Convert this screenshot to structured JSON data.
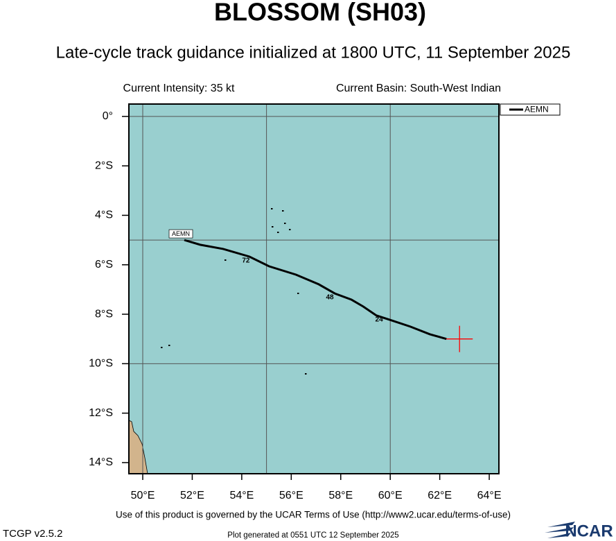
{
  "chart_data": {
    "type": "line",
    "title": "BLOSSOM (SH03)",
    "subtitle": "Late-cycle track guidance initialized at 1800 UTC, 11 September 2025",
    "current_intensity": "Current Intensity: 35 kt",
    "current_basin": "Current Basin: South-West Indian",
    "xlim": [
      49.44,
      64.39
    ],
    "ylim": [
      -14.45,
      0.5
    ],
    "xticks": [
      {
        "value": 50,
        "label": "50°E"
      },
      {
        "value": 52,
        "label": "52°E"
      },
      {
        "value": 54,
        "label": "54°E"
      },
      {
        "value": 56,
        "label": "56°E"
      },
      {
        "value": 58,
        "label": "58°E"
      },
      {
        "value": 60,
        "label": "60°E"
      },
      {
        "value": 62,
        "label": "62°E"
      },
      {
        "value": 64,
        "label": "64°E"
      }
    ],
    "yticks": [
      {
        "value": 0,
        "label": "0°"
      },
      {
        "value": -2,
        "label": "2°S"
      },
      {
        "value": -4,
        "label": "4°S"
      },
      {
        "value": -6,
        "label": "6°S"
      },
      {
        "value": -8,
        "label": "8°S"
      },
      {
        "value": -10,
        "label": "10°S"
      },
      {
        "value": -12,
        "label": "12°S"
      },
      {
        "value": -14,
        "label": "14°S"
      }
    ],
    "grid_x": [
      50,
      55,
      60
    ],
    "grid_y": [
      0,
      -5,
      -10
    ],
    "background": "#99cfcf",
    "land_color": "#d2b48c",
    "series": [
      {
        "name": "AEMN",
        "color": "#000000",
        "x": [
          51.68,
          52.32,
          53.25,
          54.31,
          55.1,
          56.19,
          57.11,
          57.76,
          58.43,
          58.91,
          59.44,
          59.97,
          60.81,
          61.6,
          62.27
        ],
        "values": [
          -5.0,
          -5.19,
          -5.36,
          -5.67,
          -6.06,
          -6.4,
          -6.79,
          -7.16,
          -7.41,
          -7.69,
          -8.05,
          -8.22,
          -8.5,
          -8.81,
          -9.0
        ]
      }
    ],
    "annotations": [
      {
        "text": "72",
        "x": 54.17,
        "y": -5.84
      },
      {
        "text": "48",
        "x": 57.56,
        "y": -7.32
      },
      {
        "text": "24",
        "x": 59.55,
        "y": -8.22
      }
    ],
    "current_position": {
      "x": 62.8,
      "y": -9.0,
      "color": "#ff0000"
    },
    "legend": "upper right",
    "terms": "Use of this product is governed by the UCAR Terms of Use (http://www2.ucar.edu/terms-of-use)",
    "version": "TCGP v2.5.2",
    "generated": "Plot generated at 0551 UTC   12 September 2025",
    "logo": "NCAR"
  }
}
